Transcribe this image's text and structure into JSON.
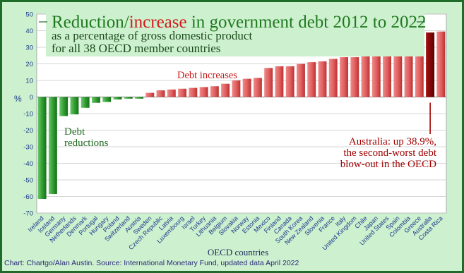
{
  "chart_data": {
    "type": "bar",
    "title": {
      "part1": "Reduction/",
      "part2": "increase",
      "part3": " in government debt 2012 to 2022"
    },
    "subtitle_line1": "as a percentage of gross domestic product",
    "subtitle_line2": "for all 38 OECD member countries",
    "xlabel": "OECD countries",
    "ylabel": "%",
    "ylim": [
      -70,
      50
    ],
    "yticks": [
      -70,
      -60,
      -50,
      -40,
      -30,
      -20,
      -10,
      0,
      10,
      20,
      30,
      40,
      50
    ],
    "grid": true,
    "categories": [
      "Ireland",
      "Iceland",
      "Germany",
      "Netherlands",
      "Denmark",
      "Portugal",
      "Hungary",
      "Poland",
      "Switzerland",
      "Austria",
      "Sweden",
      "Czech Republic",
      "Latvia",
      "Luxembourg",
      "Israel",
      "Turkey",
      "Lithuania",
      "Belgium",
      "Slovakia",
      "Norway",
      "Estonia",
      "Mexico",
      "Finland",
      "Canada",
      "South Korea",
      "New Zealand",
      "Slovenia",
      "France",
      "Italy",
      "United Kingdom",
      "Chile",
      "Japan",
      "United States",
      "Spain",
      "Colombia",
      "Greece",
      "Australia",
      "Costa Rica"
    ],
    "values": [
      -61.5,
      -58.5,
      -11.5,
      -10.5,
      -6.5,
      -3.5,
      -3.0,
      -1.5,
      -1.0,
      -1.0,
      2.5,
      4.0,
      4.5,
      5.0,
      5.5,
      6.0,
      6.5,
      8.0,
      10.0,
      11.0,
      11.5,
      17.5,
      18.5,
      18.5,
      20.0,
      21.0,
      21.5,
      23.0,
      24.0,
      24.0,
      25.0,
      26.0,
      27.5,
      30.0,
      33.5,
      37.5,
      38.9,
      39.5
    ],
    "highlight": "Australia",
    "annotations": {
      "reductions_line1": "Debt",
      "reductions_line2": "reductions",
      "increases": "Debt increases",
      "australia_line1": "Australia: up 38.9%,",
      "australia_line2": "the second-worst debt",
      "australia_line3": "blow-out in the OECD"
    },
    "colors": {
      "reduction": "#2e8b2e",
      "increase": "#e56b6b",
      "highlight": "#8b0000",
      "background": "#cdf0cf",
      "plot_background": "#ffffff",
      "title_green": "#1f7a1f",
      "title_red": "#d11a1a",
      "annotation_red": "#a00000",
      "axis_label": "#1a3a8a"
    }
  },
  "footer": {
    "source": "Chart: Chartgo/Alan Austin. Source: International Monetary Fund, updated data April 2022"
  }
}
